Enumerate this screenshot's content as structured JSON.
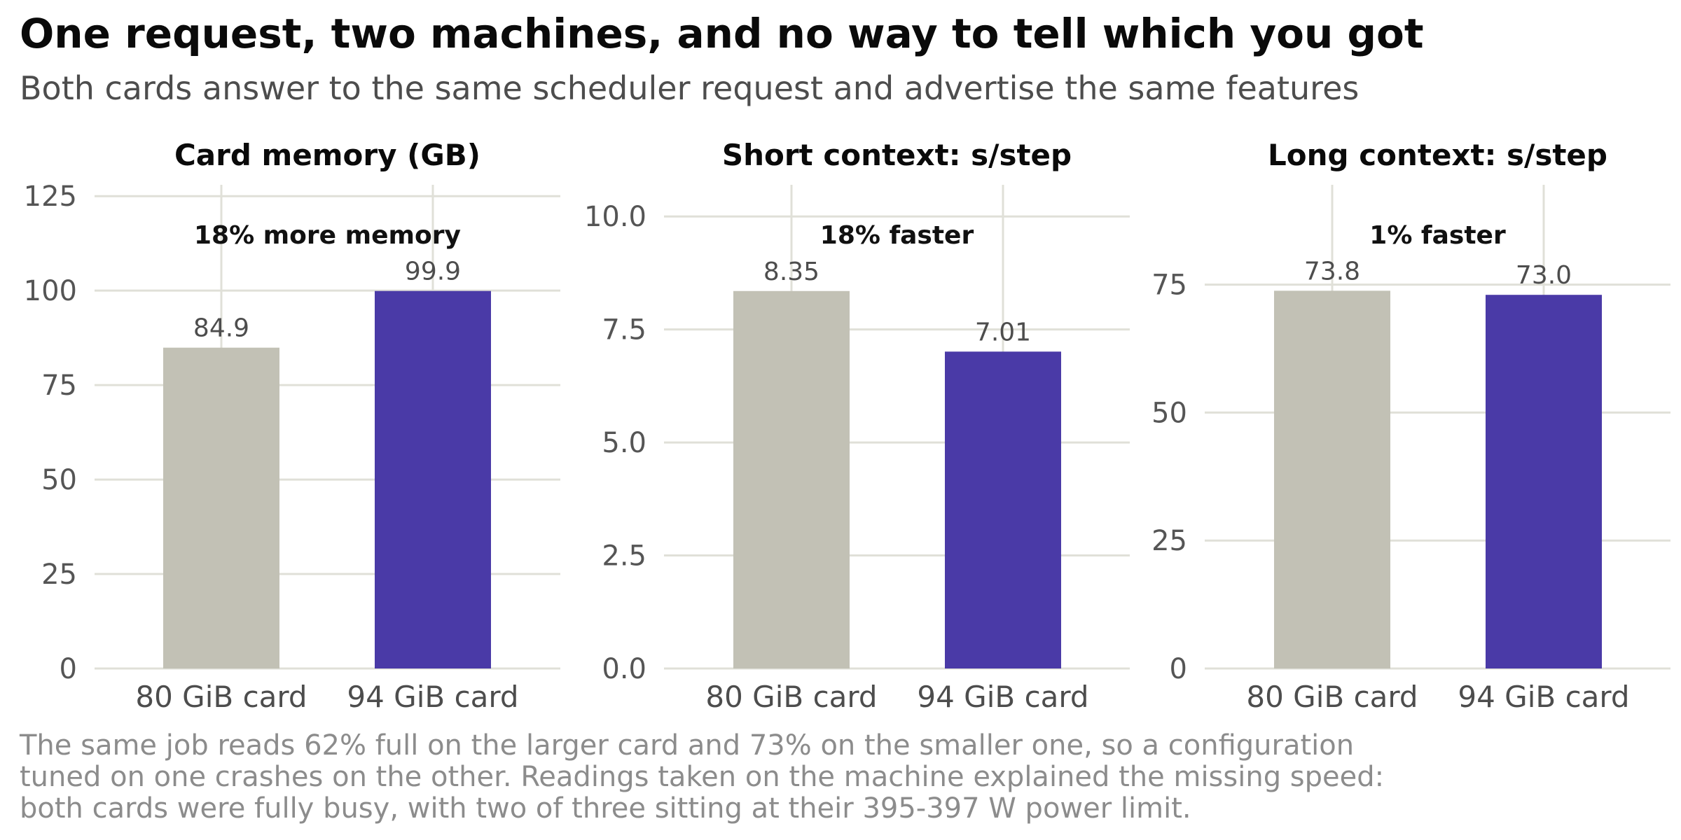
{
  "header": {
    "title": "One request, two machines, and no way to tell which you got",
    "subtitle": "Both cards answer to the same scheduler request and advertise the same features"
  },
  "caption": [
    "The same job reads 62% full on the larger card and 73% on the smaller one, so a configuration",
    "tuned on one crashes on the other. Readings taken on the machine explained the missing speed:",
    "both cards were fully busy, with two of three sitting at their 395-397 W power limit."
  ],
  "colors": {
    "80 GiB card": "#c2c1b5",
    "94 GiB card": "#4a3aa7",
    "grid": "#e0e0d8"
  },
  "chart_data": [
    {
      "type": "bar",
      "title": "Card memory (GB)",
      "annotation": "18% more memory",
      "categories": [
        "80 GiB card",
        "94 GiB card"
      ],
      "values": [
        84.9,
        99.9
      ],
      "value_labels": [
        "84.9",
        "99.9"
      ],
      "ylim": [
        0,
        128
      ],
      "yticks": [
        0,
        25,
        50,
        75,
        100,
        125
      ],
      "ytick_labels": [
        "0",
        "25",
        "50",
        "75",
        "100",
        "125"
      ],
      "grid": true,
      "xlabel": "",
      "ylabel": ""
    },
    {
      "type": "bar",
      "title": "Short context: s/step",
      "annotation": "18% faster",
      "categories": [
        "80 GiB card",
        "94 GiB card"
      ],
      "values": [
        8.35,
        7.01
      ],
      "value_labels": [
        "8.35",
        "7.01"
      ],
      "ylim": [
        0,
        10.7
      ],
      "yticks": [
        0,
        2.5,
        5,
        7.5,
        10
      ],
      "ytick_labels": [
        "0.0",
        "2.5",
        "5.0",
        "7.5",
        "10.0"
      ],
      "grid": true,
      "xlabel": "",
      "ylabel": ""
    },
    {
      "type": "bar",
      "title": "Long context: s/step",
      "annotation": "1% faster",
      "categories": [
        "80 GiB card",
        "94 GiB card"
      ],
      "values": [
        73.8,
        73.0
      ],
      "value_labels": [
        "73.8",
        "73.0"
      ],
      "ylim": [
        0,
        94.5
      ],
      "yticks": [
        0,
        25,
        50,
        75
      ],
      "ytick_labels": [
        "0",
        "25",
        "50",
        "75"
      ],
      "grid": true,
      "xlabel": "",
      "ylabel": ""
    }
  ]
}
